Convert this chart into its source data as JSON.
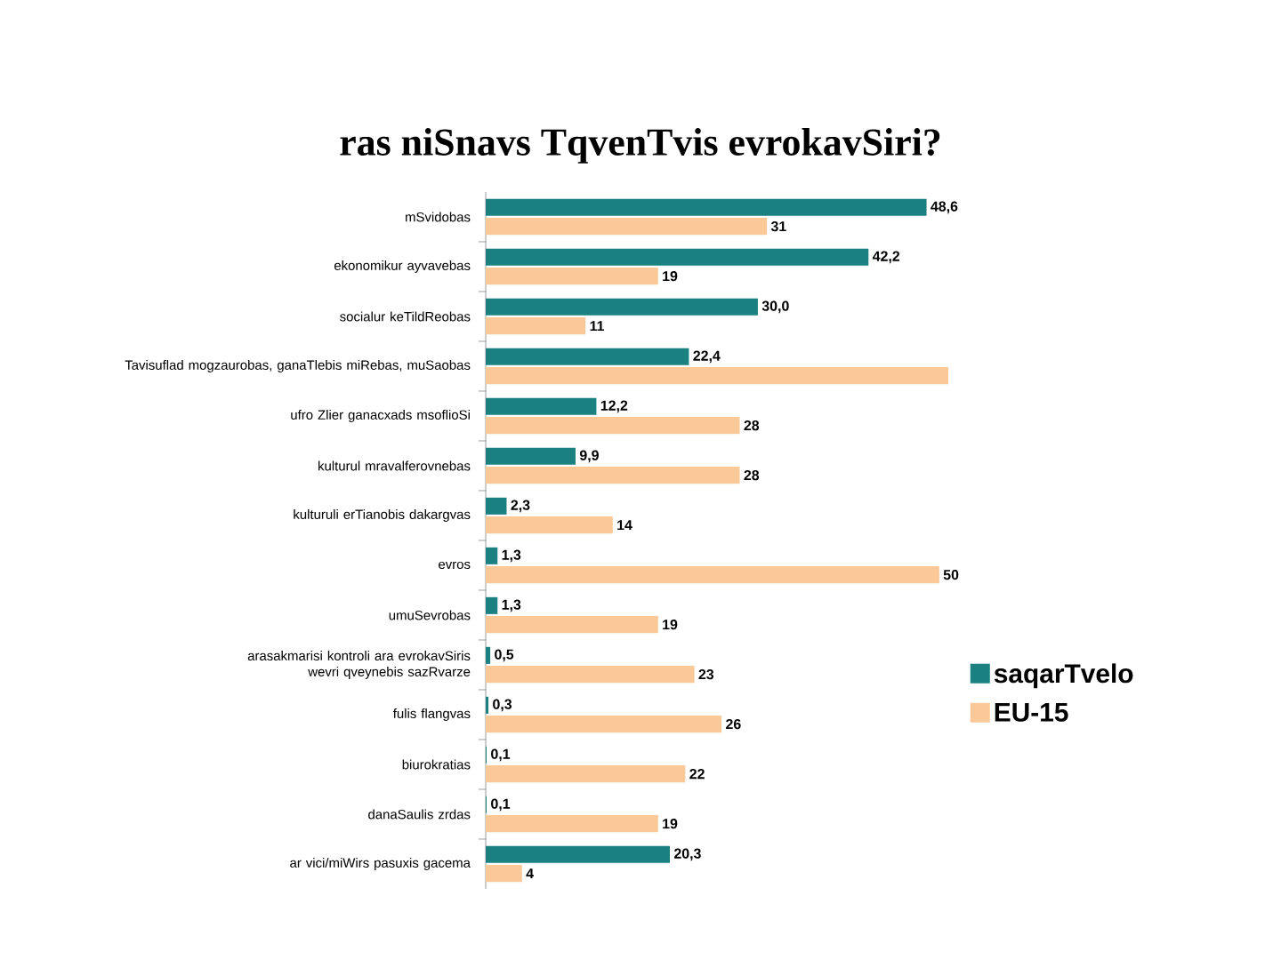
{
  "chart_data": {
    "type": "bar",
    "orientation": "horizontal",
    "title": "ras niSnavs TqvenTvis evrokavSiri?",
    "categories": [
      "mSvidobas",
      "ekonomikur ayvavebas",
      "socialur keTildReobas",
      "Tavisuflad mogzaurobas, ganaTlebis miRebas, muSaobas",
      "ufro Zlier ganacxads msoflioSi",
      "kulturul mravalferovnebas",
      "kulturuli erTianobis dakargvas",
      "evros",
      "umuSevrobas",
      "arasakmarisi kontroli ara evrokavSiris wevri qveynebis sazRvarze",
      "fulis flangvas",
      "biurokratias",
      "danaSaulis zrdas",
      "ar vici/miWirs pasuxis gacema"
    ],
    "series": [
      {
        "name": "saqarTvelo",
        "color": "#1a8080",
        "values": [
          48.6,
          42.2,
          30.0,
          22.4,
          12.2,
          9.9,
          2.3,
          1.3,
          1.3,
          0.5,
          0.3,
          0.1,
          0.1,
          20.3
        ],
        "value_labels": [
          "48,6",
          "42,2",
          "30,0",
          "22,4",
          "12,2",
          "9,9",
          "2,3",
          "1,3",
          "1,3",
          "0,5",
          "0,3",
          "0,1",
          "0,1",
          "20,3"
        ]
      },
      {
        "name": "EU-15",
        "color": "#fbc898",
        "values": [
          31,
          19,
          11,
          51,
          28,
          28,
          14,
          50,
          19,
          23,
          26,
          22,
          19,
          4
        ],
        "value_labels": [
          "31",
          "19",
          "11",
          null,
          "28",
          "28",
          "14",
          "50",
          "19",
          "23",
          "26",
          "22",
          "19",
          "4"
        ]
      }
    ],
    "legend": "right"
  }
}
